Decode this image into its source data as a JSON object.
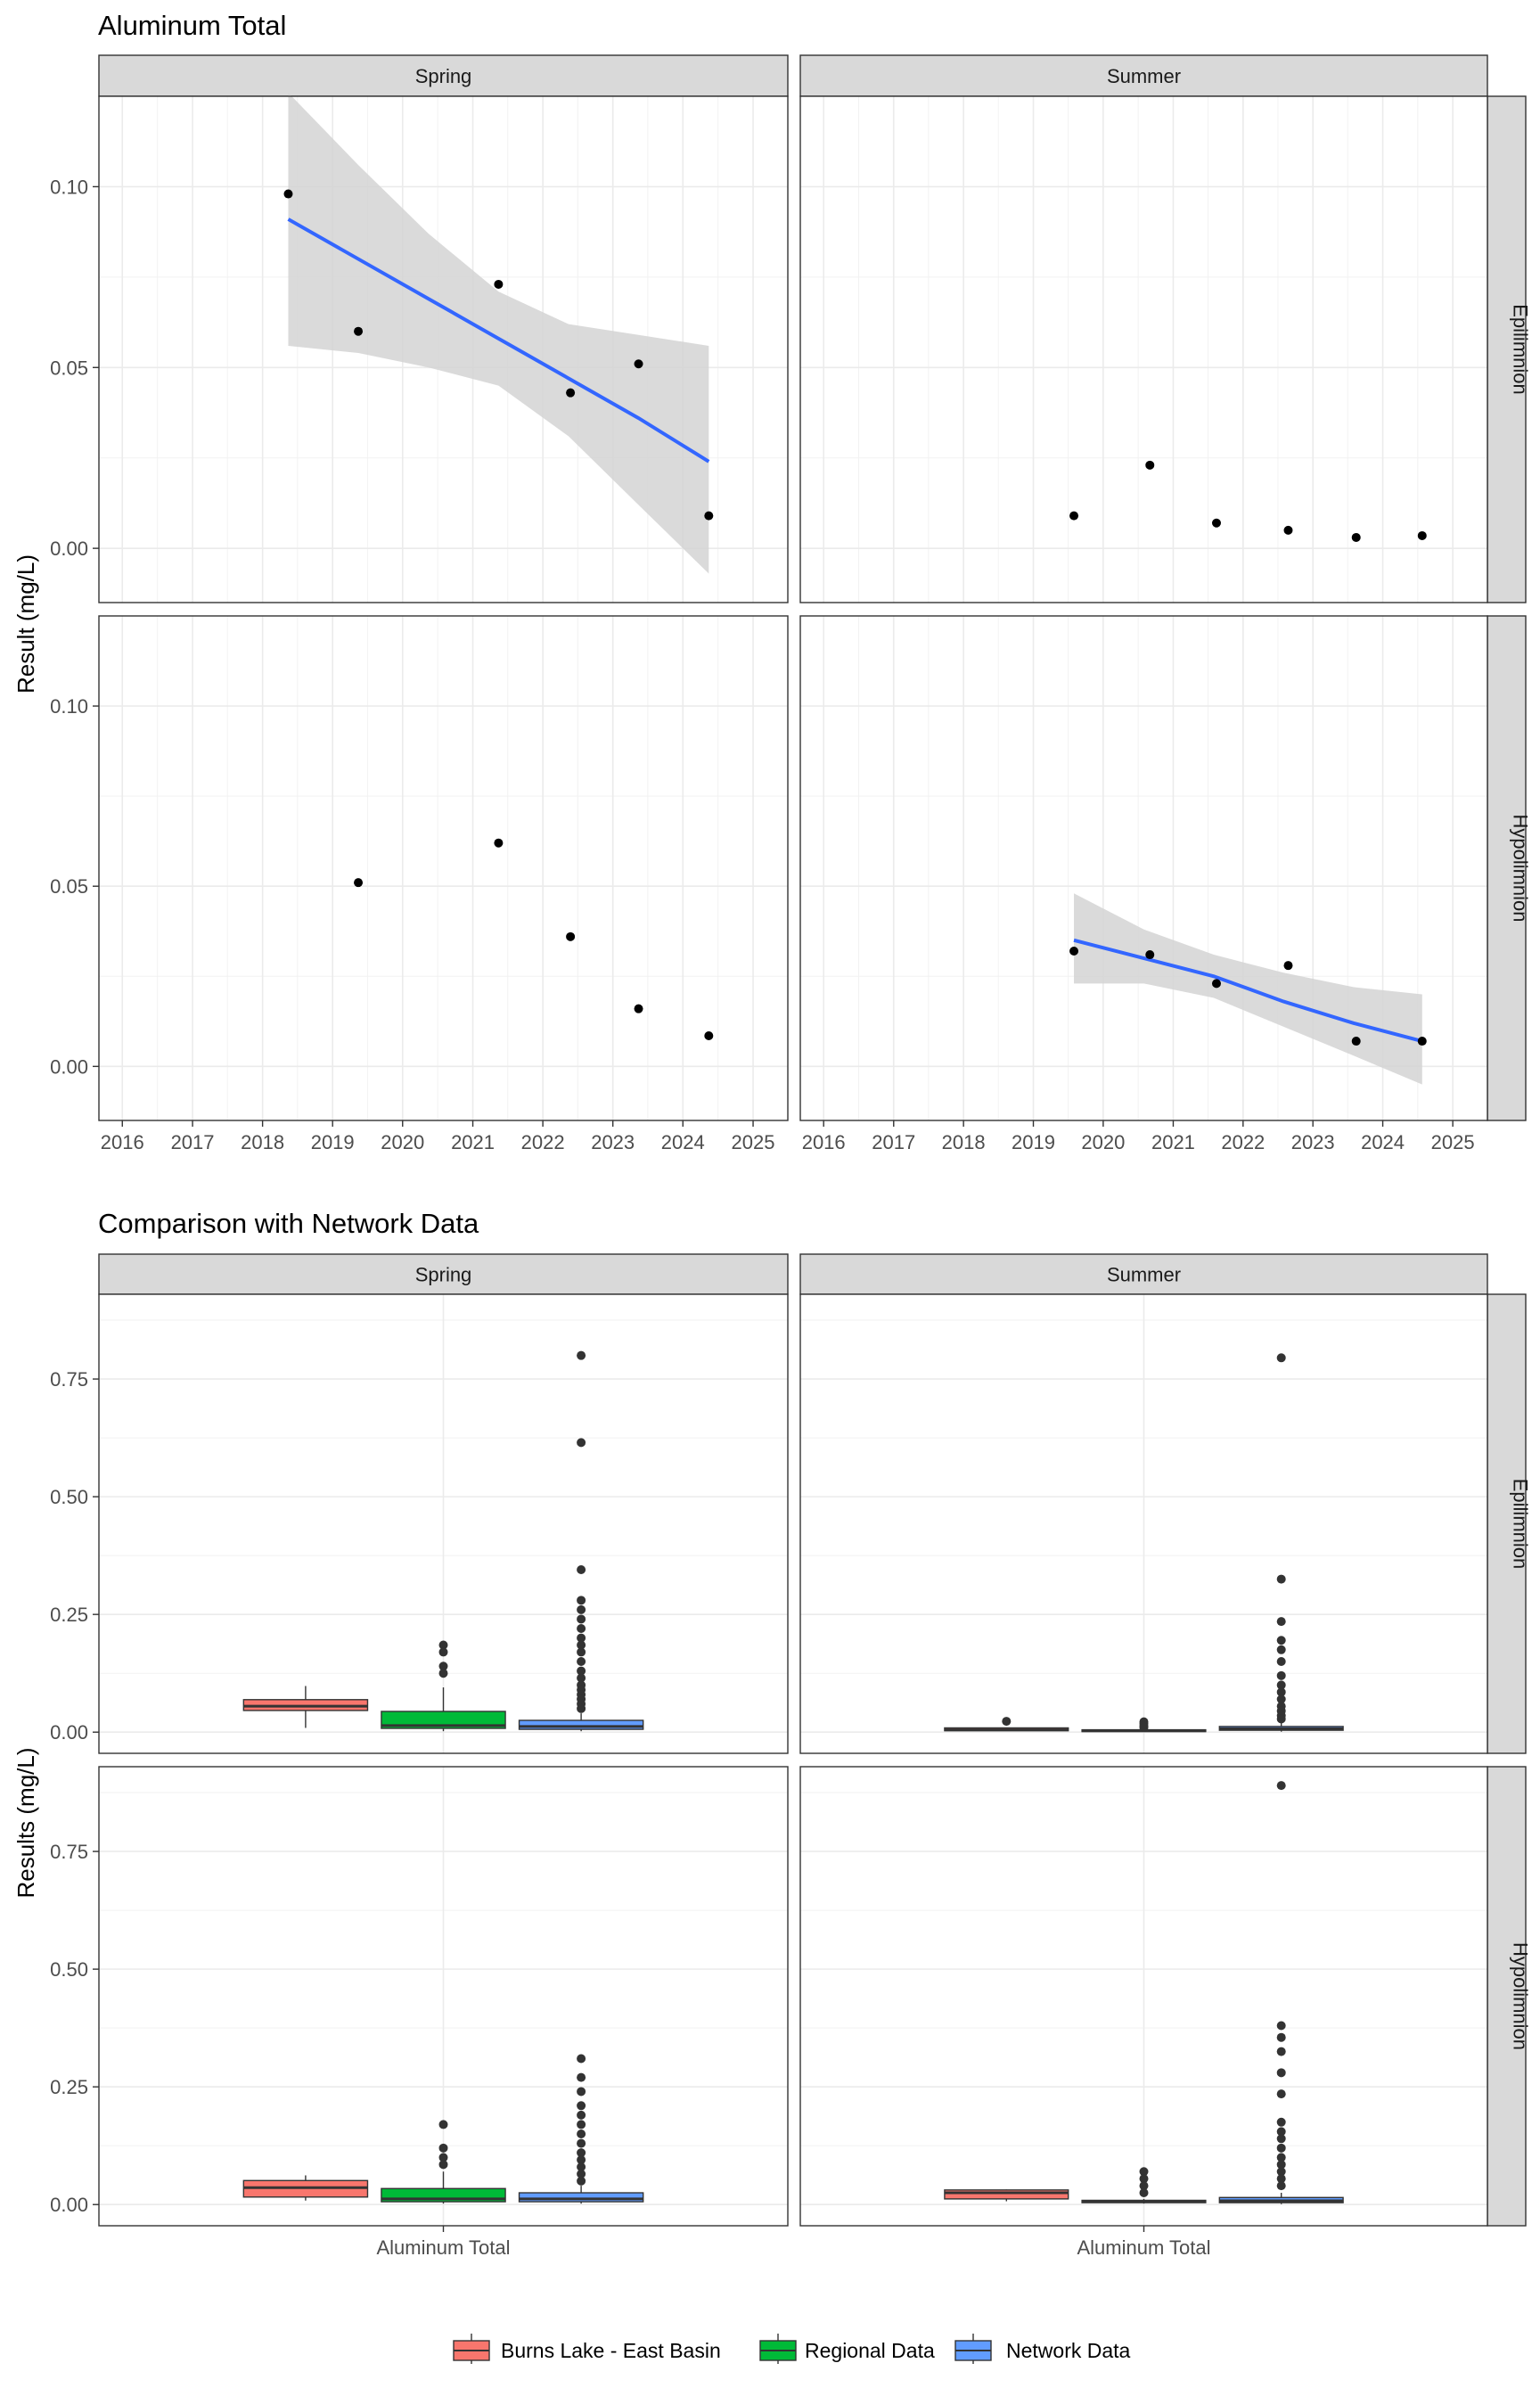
{
  "chart_data": [
    {
      "type": "scatter",
      "title": "Aluminum Total",
      "ylabel": "Result (mg/L)",
      "xlabel": "",
      "ylim": [
        -0.015,
        0.125
      ],
      "xlim": [
        "2015-09-01",
        "2025-07-01"
      ],
      "yticks": [
        "0.00",
        "0.05",
        "0.10"
      ],
      "xticks": [
        "2016",
        "2017",
        "2018",
        "2019",
        "2020",
        "2021",
        "2022",
        "2023",
        "2024",
        "2025"
      ],
      "grid": true,
      "col_facets": [
        "Spring",
        "Summer"
      ],
      "row_facets": [
        "Epilimnion",
        "Hypolimnion"
      ],
      "point_color": "#000000",
      "trend_color": "#3366FF",
      "band_color": "#D3D3D3",
      "panels": [
        {
          "season": "Spring",
          "layer": "Epilimnion",
          "points": [
            {
              "x": "2018-05-15",
              "y": 0.098
            },
            {
              "x": "2019-05-15",
              "y": 0.06
            },
            {
              "x": "2021-05-15",
              "y": 0.073
            },
            {
              "x": "2022-05-25",
              "y": 0.043
            },
            {
              "x": "2023-05-15",
              "y": 0.051
            },
            {
              "x": "2024-05-15",
              "y": 0.009
            }
          ],
          "trend": [
            {
              "x": "2018-05-15",
              "y": 0.091,
              "lo": 0.056,
              "hi": 0.126
            },
            {
              "x": "2019-05-15",
              "y": 0.08,
              "lo": 0.054,
              "hi": 0.106
            },
            {
              "x": "2020-05-15",
              "y": 0.069,
              "lo": 0.05,
              "hi": 0.087
            },
            {
              "x": "2021-05-15",
              "y": 0.058,
              "lo": 0.045,
              "hi": 0.071
            },
            {
              "x": "2022-05-15",
              "y": 0.047,
              "lo": 0.031,
              "hi": 0.062
            },
            {
              "x": "2023-05-15",
              "y": 0.036,
              "lo": 0.012,
              "hi": 0.059
            },
            {
              "x": "2024-05-15",
              "y": 0.024,
              "lo": -0.007,
              "hi": 0.056
            }
          ]
        },
        {
          "season": "Summer",
          "layer": "Epilimnion",
          "points": [
            {
              "x": "2019-08-01",
              "y": 0.009
            },
            {
              "x": "2020-09-01",
              "y": 0.023
            },
            {
              "x": "2021-08-15",
              "y": 0.007
            },
            {
              "x": "2022-08-25",
              "y": 0.005
            },
            {
              "x": "2023-08-15",
              "y": 0.003
            },
            {
              "x": "2024-07-25",
              "y": 0.0035
            }
          ],
          "trend": []
        },
        {
          "season": "Spring",
          "layer": "Hypolimnion",
          "points": [
            {
              "x": "2019-05-15",
              "y": 0.051
            },
            {
              "x": "2021-05-15",
              "y": 0.062
            },
            {
              "x": "2022-05-25",
              "y": 0.036
            },
            {
              "x": "2023-05-15",
              "y": 0.016
            },
            {
              "x": "2024-05-15",
              "y": 0.0085
            }
          ],
          "trend": []
        },
        {
          "season": "Summer",
          "layer": "Hypolimnion",
          "points": [
            {
              "x": "2019-08-01",
              "y": 0.032
            },
            {
              "x": "2020-09-01",
              "y": 0.031
            },
            {
              "x": "2021-08-15",
              "y": 0.023
            },
            {
              "x": "2022-08-25",
              "y": 0.028
            },
            {
              "x": "2023-08-15",
              "y": 0.007
            },
            {
              "x": "2024-07-25",
              "y": 0.007
            }
          ],
          "trend": [
            {
              "x": "2019-08-01",
              "y": 0.035,
              "lo": 0.023,
              "hi": 0.048
            },
            {
              "x": "2020-08-01",
              "y": 0.03,
              "lo": 0.023,
              "hi": 0.038
            },
            {
              "x": "2021-08-01",
              "y": 0.025,
              "lo": 0.019,
              "hi": 0.031
            },
            {
              "x": "2022-08-01",
              "y": 0.018,
              "lo": 0.011,
              "hi": 0.026
            },
            {
              "x": "2023-08-01",
              "y": 0.012,
              "lo": 0.003,
              "hi": 0.022
            },
            {
              "x": "2024-07-25",
              "y": 0.007,
              "lo": -0.005,
              "hi": 0.02
            }
          ]
        }
      ]
    },
    {
      "type": "box",
      "title": "Comparison with Network Data",
      "ylabel": "Results (mg/L)",
      "xlabel": "",
      "category": "Aluminum Total",
      "ylim": [
        -0.045,
        0.93
      ],
      "yticks": [
        "0.00",
        "0.25",
        "0.50",
        "0.75"
      ],
      "grid": true,
      "col_facets": [
        "Spring",
        "Summer"
      ],
      "row_facets": [
        "Epilimnion",
        "Hypolimnion"
      ],
      "legend_position": "bottom",
      "series": [
        {
          "name": "Burns Lake - East Basin",
          "color": "#F8766D"
        },
        {
          "name": "Regional Data",
          "color": "#00BA38"
        },
        {
          "name": "Network Data",
          "color": "#619CFF"
        }
      ],
      "panels": [
        {
          "season": "Spring",
          "layer": "Epilimnion",
          "boxes": [
            {
              "series": "Burns Lake - East Basin",
              "min": 0.009,
              "q1": 0.046,
              "median": 0.055,
              "q3": 0.069,
              "max": 0.098,
              "outliers": []
            },
            {
              "series": "Regional Data",
              "min": 0.002,
              "q1": 0.008,
              "median": 0.014,
              "q3": 0.044,
              "max": 0.095,
              "outliers": [
                0.185,
                0.17,
                0.14,
                0.125
              ]
            },
            {
              "series": "Network Data",
              "min": 0.002,
              "q1": 0.006,
              "median": 0.012,
              "q3": 0.025,
              "max": 0.04,
              "outliers": [
                0.8,
                0.615,
                0.345,
                0.28,
                0.26,
                0.24,
                0.22,
                0.2,
                0.185,
                0.17,
                0.15,
                0.13,
                0.115,
                0.1,
                0.09,
                0.08,
                0.07,
                0.06,
                0.05
              ]
            }
          ]
        },
        {
          "season": "Summer",
          "layer": "Epilimnion",
          "boxes": [
            {
              "series": "Burns Lake - East Basin",
              "min": 0.003,
              "q1": 0.003,
              "median": 0.005,
              "q3": 0.009,
              "max": 0.009,
              "outliers": [
                0.023
              ]
            },
            {
              "series": "Regional Data",
              "min": 0.001,
              "q1": 0.002,
              "median": 0.003,
              "q3": 0.005,
              "max": 0.007,
              "outliers": [
                0.022,
                0.018,
                0.013,
                0.01
              ]
            },
            {
              "series": "Network Data",
              "min": 0.001,
              "q1": 0.004,
              "median": 0.007,
              "q3": 0.012,
              "max": 0.02,
              "outliers": [
                0.795,
                0.325,
                0.235,
                0.195,
                0.175,
                0.15,
                0.12,
                0.1,
                0.085,
                0.07,
                0.055,
                0.045,
                0.035,
                0.028
              ]
            }
          ]
        },
        {
          "season": "Spring",
          "layer": "Hypolimnion",
          "boxes": [
            {
              "series": "Burns Lake - East Basin",
              "min": 0.0085,
              "q1": 0.016,
              "median": 0.036,
              "q3": 0.051,
              "max": 0.062,
              "outliers": []
            },
            {
              "series": "Regional Data",
              "min": 0.002,
              "q1": 0.006,
              "median": 0.012,
              "q3": 0.034,
              "max": 0.07,
              "outliers": [
                0.17,
                0.12,
                0.1,
                0.085
              ]
            },
            {
              "series": "Network Data",
              "min": 0.002,
              "q1": 0.006,
              "median": 0.012,
              "q3": 0.025,
              "max": 0.04,
              "outliers": [
                0.31,
                0.27,
                0.24,
                0.21,
                0.19,
                0.17,
                0.15,
                0.13,
                0.11,
                0.095,
                0.08,
                0.065,
                0.05
              ]
            }
          ]
        },
        {
          "season": "Summer",
          "layer": "Hypolimnion",
          "boxes": [
            {
              "series": "Burns Lake - East Basin",
              "min": 0.007,
              "q1": 0.012,
              "median": 0.025,
              "q3": 0.031,
              "max": 0.032,
              "outliers": []
            },
            {
              "series": "Regional Data",
              "min": 0.002,
              "q1": 0.004,
              "median": 0.006,
              "q3": 0.009,
              "max": 0.012,
              "outliers": [
                0.07,
                0.055,
                0.04,
                0.025
              ]
            },
            {
              "series": "Network Data",
              "min": 0.001,
              "q1": 0.004,
              "median": 0.008,
              "q3": 0.015,
              "max": 0.025,
              "outliers": [
                0.89,
                0.38,
                0.355,
                0.325,
                0.28,
                0.235,
                0.175,
                0.155,
                0.14,
                0.12,
                0.1,
                0.085,
                0.07,
                0.055,
                0.04
              ]
            }
          ]
        }
      ]
    }
  ]
}
